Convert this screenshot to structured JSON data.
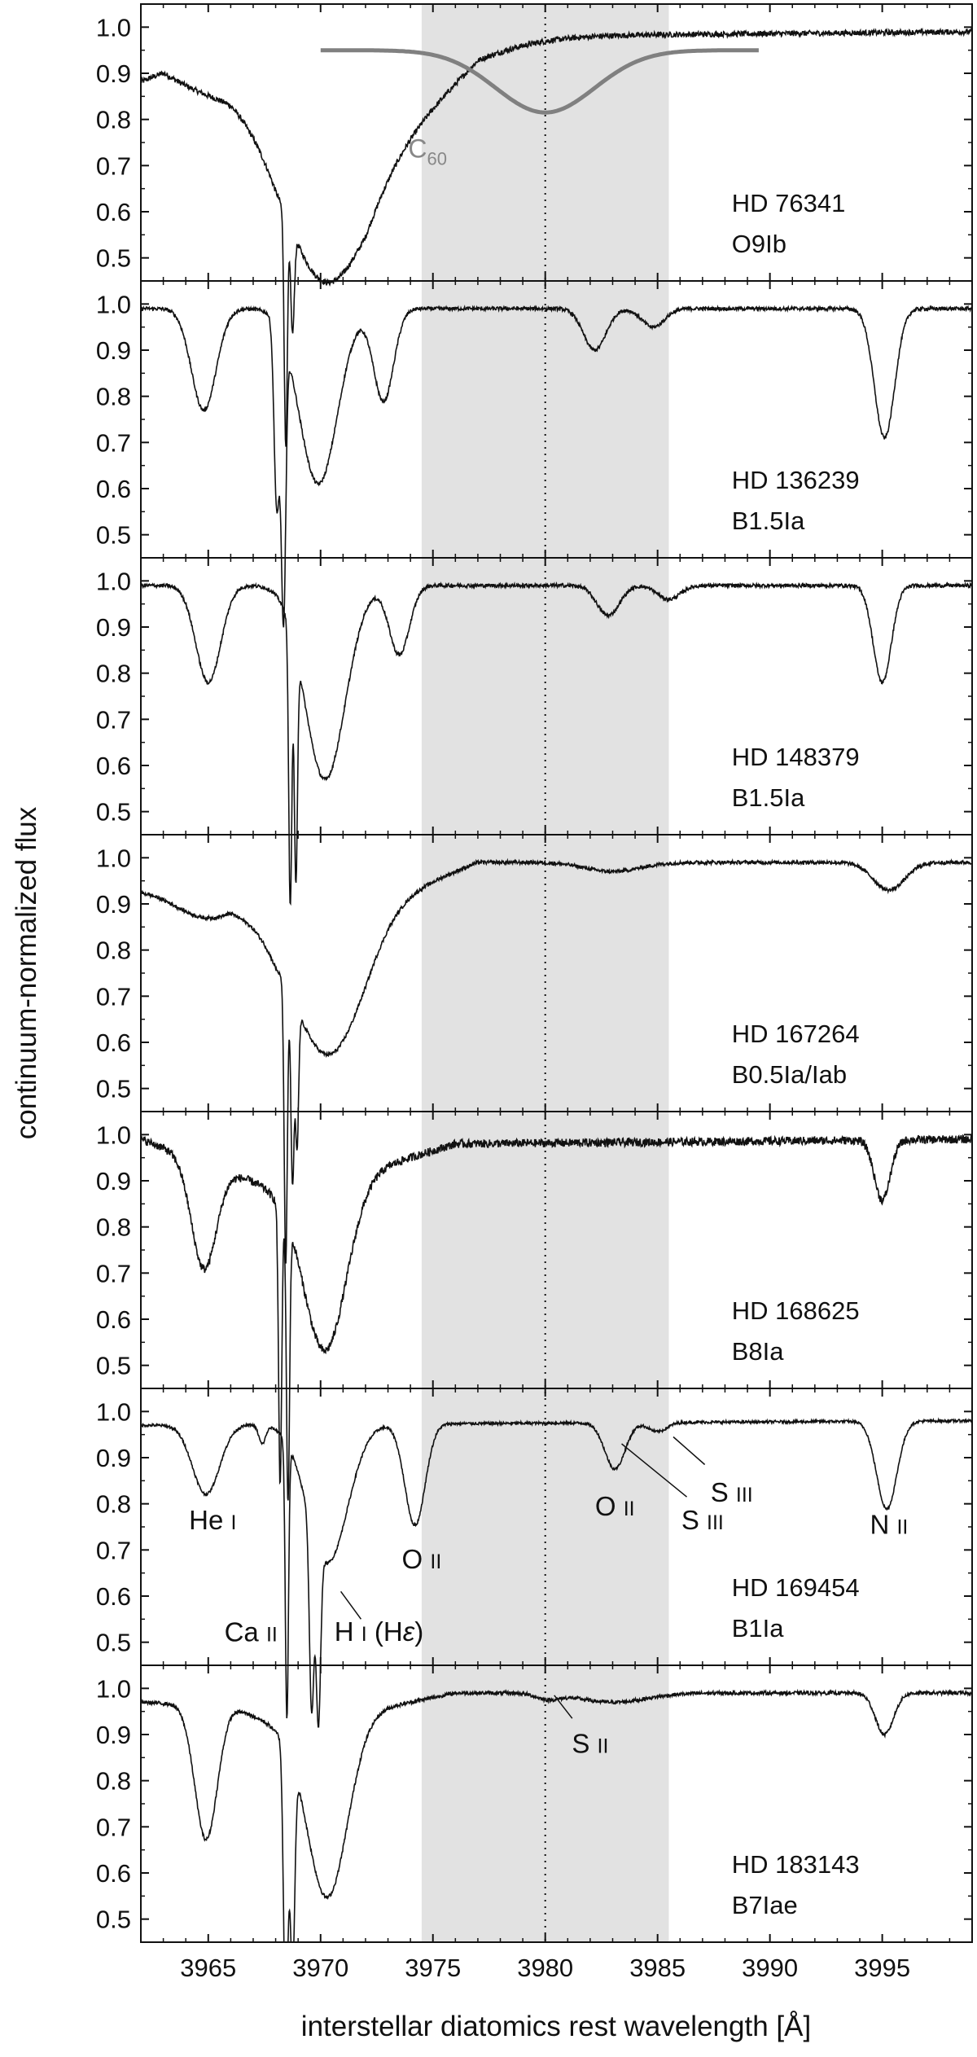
{
  "chart_data": {
    "type": "line",
    "x_label": "interstellar diatomics rest wavelength [Å]",
    "y_label": "continuum-normalized flux",
    "xlim": [
      3962,
      3999
    ],
    "ylim": [
      0.45,
      1.05
    ],
    "x_ticks": [
      3965,
      3970,
      3975,
      3980,
      3985,
      3990,
      3995
    ],
    "y_ticks": [
      0.5,
      0.6,
      0.7,
      0.8,
      0.9,
      1.0
    ],
    "highlight_band": [
      3974.5,
      3985.5
    ],
    "dotted_line_x": 3980.0,
    "c60": {
      "label": "C",
      "sub": "60",
      "center": 3980.0,
      "depth": 0.135,
      "baseline": 0.95,
      "range": [
        3970,
        3989.5
      ]
    },
    "panels": [
      {
        "star": "HD 76341",
        "sptype": "O9Ib",
        "features": [
          {
            "c": 3965,
            "d": 0.07,
            "w": 2.2
          },
          {
            "c": 3968.45,
            "d": 0.5,
            "w": 0.07
          },
          {
            "c": 3968.75,
            "d": 0.22,
            "w": 0.08
          },
          {
            "c": 3970.1,
            "d": 0.29,
            "w": 1.7
          },
          {
            "c": 3972.5,
            "d": 0.12,
            "w": 3.5
          }
        ],
        "base": [
          [
            3962,
            0.91
          ],
          [
            3963,
            0.95
          ],
          [
            3966,
            0.93
          ],
          [
            3968,
            0.86
          ],
          [
            3972,
            0.82
          ],
          [
            3975,
            0.92
          ],
          [
            3977,
            0.98
          ],
          [
            3999,
            0.99
          ]
        ],
        "noise": 0.006
      },
      {
        "star": "HD 136239",
        "sptype": "B1.5Ia",
        "features": [
          {
            "c": 3964.8,
            "d": 0.22,
            "w": 0.55
          },
          {
            "c": 3968.35,
            "d": 0.6,
            "w": 0.1
          },
          {
            "c": 3968.05,
            "d": 0.4,
            "w": 0.12
          },
          {
            "c": 3969.9,
            "d": 0.38,
            "w": 0.85
          },
          {
            "c": 3972.8,
            "d": 0.2,
            "w": 0.45
          },
          {
            "c": 3982.2,
            "d": 0.09,
            "w": 0.5
          },
          {
            "c": 3984.8,
            "d": 0.04,
            "w": 0.5
          },
          {
            "c": 3995.1,
            "d": 0.28,
            "w": 0.45
          }
        ],
        "base": [
          [
            3962,
            0.99
          ],
          [
            3999,
            0.99
          ]
        ],
        "noise": 0.004
      },
      {
        "star": "HD 148379",
        "sptype": "B1.5Ia",
        "features": [
          {
            "c": 3965.0,
            "d": 0.21,
            "w": 0.55
          },
          {
            "c": 3968.65,
            "d": 0.6,
            "w": 0.07
          },
          {
            "c": 3968.9,
            "d": 0.5,
            "w": 0.07
          },
          {
            "c": 3970.2,
            "d": 0.42,
            "w": 0.9
          },
          {
            "c": 3973.5,
            "d": 0.15,
            "w": 0.45
          },
          {
            "c": 3982.8,
            "d": 0.065,
            "w": 0.5
          },
          {
            "c": 3985.5,
            "d": 0.03,
            "w": 0.5
          },
          {
            "c": 3995.0,
            "d": 0.21,
            "w": 0.4
          }
        ],
        "base": [
          [
            3962,
            0.99
          ],
          [
            3999,
            0.99
          ]
        ],
        "noise": 0.004
      },
      {
        "star": "HD 167264",
        "sptype": "B0.5Ia/Iab",
        "features": [
          {
            "c": 3965.0,
            "d": 0.06,
            "w": 1.4
          },
          {
            "c": 3968.45,
            "d": 0.6,
            "w": 0.07
          },
          {
            "c": 3968.75,
            "d": 0.4,
            "w": 0.07
          },
          {
            "c": 3968.95,
            "d": 0.3,
            "w": 0.07
          },
          {
            "c": 3970.4,
            "d": 0.3,
            "w": 1.5
          },
          {
            "c": 3983.0,
            "d": 0.02,
            "w": 1.2
          },
          {
            "c": 3995.3,
            "d": 0.06,
            "w": 0.7
          }
        ],
        "base": [
          [
            3962,
            0.93
          ],
          [
            3966,
            0.93
          ],
          [
            3968,
            0.85
          ],
          [
            3972,
            0.89
          ],
          [
            3975,
            0.95
          ],
          [
            3977,
            0.99
          ],
          [
            3999,
            0.99
          ]
        ],
        "noise": 0.004
      },
      {
        "star": "HD 168625",
        "sptype": "B8Ia",
        "features": [
          {
            "c": 3964.8,
            "d": 0.23,
            "w": 0.55
          },
          {
            "c": 3968.2,
            "d": 0.6,
            "w": 0.07
          },
          {
            "c": 3968.55,
            "d": 0.6,
            "w": 0.07
          },
          {
            "c": 3970.2,
            "d": 0.37,
            "w": 0.95
          },
          {
            "c": 3995.0,
            "d": 0.13,
            "w": 0.35
          }
        ],
        "base": [
          [
            3962,
            0.99
          ],
          [
            3968,
            0.88
          ],
          [
            3972,
            0.92
          ],
          [
            3976,
            0.98
          ],
          [
            3999,
            0.99
          ]
        ],
        "noise": 0.009
      },
      {
        "star": "HD 169454",
        "sptype": "B1Ia",
        "features": [
          {
            "c": 3964.9,
            "d": 0.15,
            "w": 0.6
          },
          {
            "c": 3967.4,
            "d": 0.04,
            "w": 0.15
          },
          {
            "c": 3968.5,
            "d": 0.6,
            "w": 0.07
          },
          {
            "c": 3969.6,
            "d": 0.4,
            "w": 0.1
          },
          {
            "c": 3969.9,
            "d": 0.38,
            "w": 0.1
          },
          {
            "c": 3970.3,
            "d": 0.3,
            "w": 0.9
          },
          {
            "c": 3974.2,
            "d": 0.22,
            "w": 0.45
          },
          {
            "c": 3983.1,
            "d": 0.1,
            "w": 0.45
          },
          {
            "c": 3985.0,
            "d": 0.02,
            "w": 0.4
          },
          {
            "c": 3995.2,
            "d": 0.19,
            "w": 0.45
          }
        ],
        "base": [
          [
            3962,
            0.97
          ],
          [
            3999,
            0.98
          ]
        ],
        "noise": 0.003
      },
      {
        "star": "HD 183143",
        "sptype": "B7Iae",
        "features": [
          {
            "c": 3964.9,
            "d": 0.29,
            "w": 0.5
          },
          {
            "c": 3968.45,
            "d": 0.6,
            "w": 0.1
          },
          {
            "c": 3968.75,
            "d": 0.45,
            "w": 0.1
          },
          {
            "c": 3970.3,
            "d": 0.39,
            "w": 0.9
          },
          {
            "c": 3980.1,
            "d": 0.012,
            "w": 0.5
          },
          {
            "c": 3983.0,
            "d": 0.02,
            "w": 1.5
          },
          {
            "c": 3995.1,
            "d": 0.09,
            "w": 0.4
          }
        ],
        "base": [
          [
            3962,
            0.97
          ],
          [
            3966,
            0.96
          ],
          [
            3968,
            0.92
          ],
          [
            3972,
            0.95
          ],
          [
            3976,
            0.99
          ],
          [
            3999,
            0.99
          ]
        ],
        "noise": 0.004
      }
    ],
    "annotations": [
      {
        "panel": 5,
        "text": "He",
        "ion": "I",
        "x": 3965.2,
        "y": 0.745
      },
      {
        "panel": 5,
        "text": "Ca",
        "ion": "II",
        "x": 3966.9,
        "y": 0.502
      },
      {
        "panel": 5,
        "text": "H",
        "ion": "I",
        "suffix": "(H",
        "eps": "ε",
        "close": ")",
        "x": 3972.6,
        "y": 0.503
      },
      {
        "panel": 5,
        "text": "O",
        "ion": "II",
        "x": 3974.5,
        "y": 0.66
      },
      {
        "panel": 5,
        "text": "O",
        "ion": "II",
        "x": 3983.1,
        "y": 0.775
      },
      {
        "panel": 5,
        "text": "S",
        "ion": "III",
        "x": 3987.0,
        "y": 0.745
      },
      {
        "panel": 5,
        "text": "S",
        "ion": "III",
        "x": 3988.3,
        "y": 0.805
      },
      {
        "panel": 5,
        "text": "N",
        "ion": "II",
        "x": 3995.3,
        "y": 0.735
      },
      {
        "panel": 6,
        "text": "S",
        "ion": "II",
        "x": 3982.0,
        "y": 0.86
      }
    ]
  }
}
